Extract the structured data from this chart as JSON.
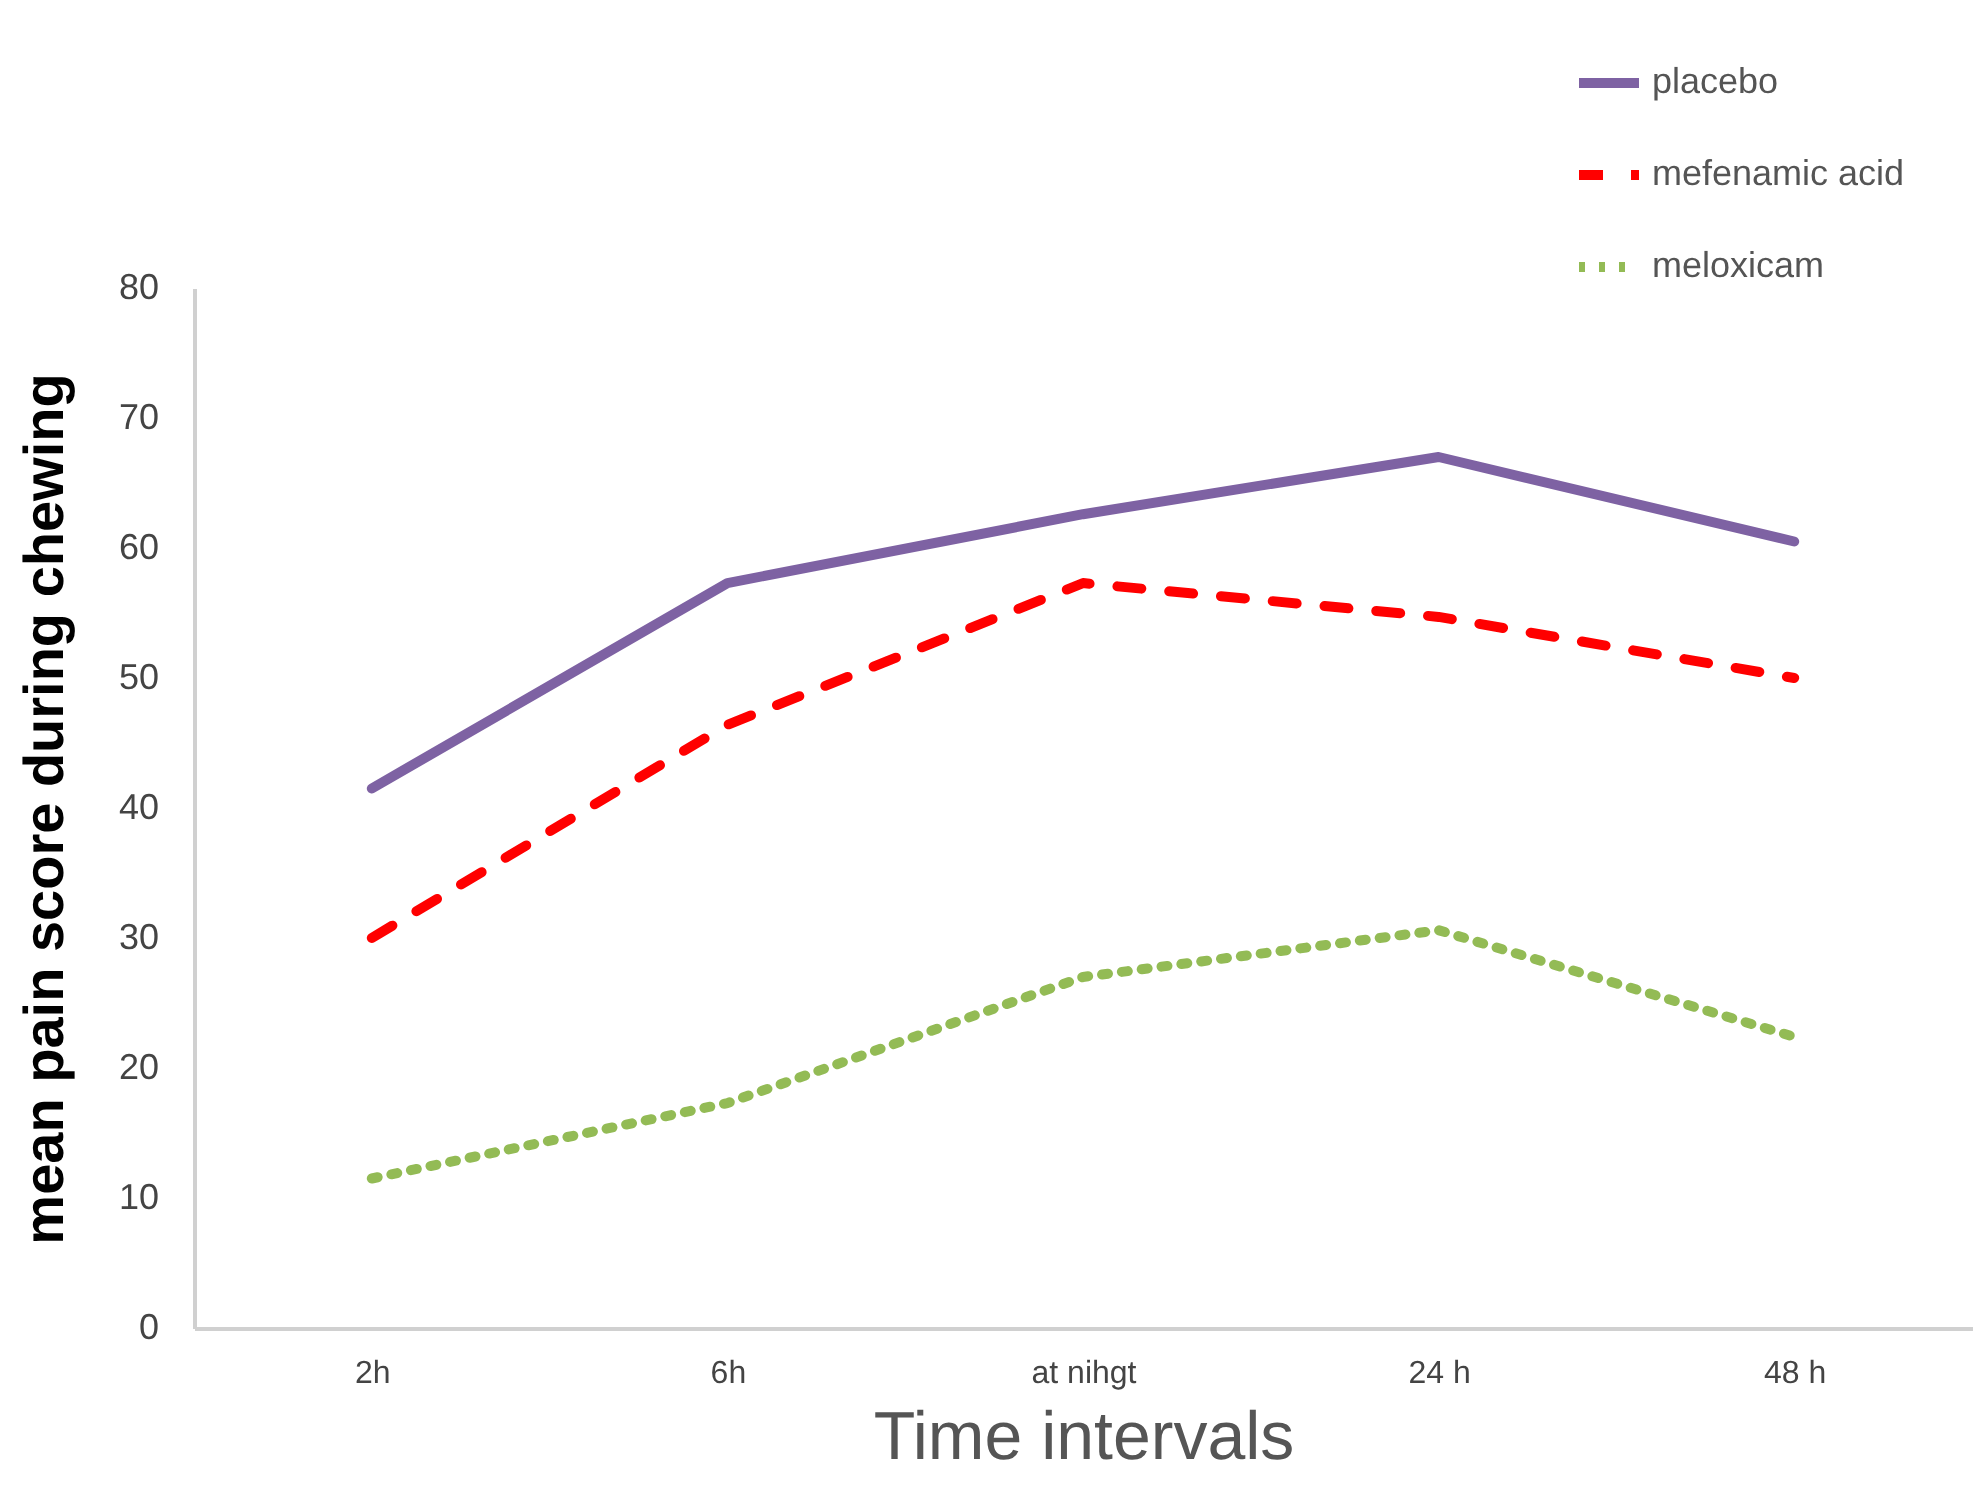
{
  "chart_data": {
    "type": "line",
    "xlabel": "Time intervals",
    "ylabel": "mean pain score during chewing",
    "categories": [
      "2h",
      "6h",
      "at nihgt",
      "24 h",
      "48 h"
    ],
    "series": [
      {
        "name": "placebo",
        "color": "#7e62a3",
        "line_style": "solid",
        "values": [
          41.5,
          57.3,
          62.6,
          67,
          60.5
        ]
      },
      {
        "name": "mefenamic acid",
        "color": "#ff0000",
        "line_style": "dashed",
        "values": [
          30,
          46.4,
          57.3,
          54.7,
          50
        ]
      },
      {
        "name": "meloxicam",
        "color": "#93bb55",
        "line_style": "dotted",
        "values": [
          11.5,
          17.3,
          27,
          30.6,
          22.4
        ]
      }
    ],
    "ylim": [
      0,
      80
    ],
    "yticks": [
      0,
      10,
      20,
      30,
      40,
      50,
      60,
      70,
      80
    ],
    "grid": false,
    "legend": "top right",
    "marker": "none"
  }
}
